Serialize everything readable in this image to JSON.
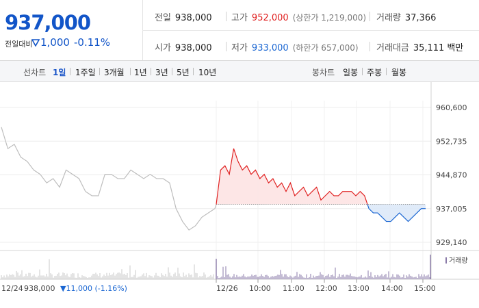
{
  "summary": {
    "price": "937,000",
    "change_label": "전일대비",
    "change_value": "1,000",
    "change_percent": "-0.11%",
    "prev_close_label": "전일",
    "prev_close": "938,000",
    "open_label": "시가",
    "open": "938,000",
    "high_label": "고가",
    "high": "952,000",
    "upper_limit": "(상한가 1,219,000)",
    "low_label": "저가",
    "low": "933,000",
    "lower_limit": "(하한가 657,000)",
    "volume_label": "거래량",
    "volume": "37,366",
    "amount_label": "거래대금",
    "amount": "35,111",
    "amount_unit": "백만"
  },
  "tabs": {
    "line_label": "선차트",
    "line": [
      "1일",
      "1주일",
      "3개월",
      "1년",
      "3년",
      "5년",
      "10년"
    ],
    "candle_label": "봉차트",
    "candle": [
      "일봉",
      "주봉",
      "월봉"
    ],
    "active": "1일"
  },
  "chart_data": {
    "type": "line",
    "y_ticks": [
      "960,600",
      "952,735",
      "944,870",
      "937,005",
      "929,140"
    ],
    "ylim": [
      929140,
      960600
    ],
    "reference_price": 938000,
    "x_ticks": [
      "12/26",
      "10:00",
      "11:00",
      "12:00",
      "13:00",
      "14:00",
      "15:00"
    ],
    "prev_day_label": "12/24",
    "prev_day_close": "938,000",
    "prev_day_change": "▼11,000 (-1.16%)",
    "volume_legend": "거래량",
    "prev_day_series": [
      956000,
      951000,
      952000,
      949000,
      948000,
      946000,
      945000,
      943000,
      944000,
      942000,
      946000,
      945000,
      944000,
      941000,
      940000,
      940000,
      945000,
      945000,
      944000,
      944000,
      946000,
      945000,
      944000,
      945000,
      944000,
      944000,
      943000,
      937000,
      934000,
      932000,
      933000,
      935000,
      936000,
      937000
    ],
    "today_series": [
      938000,
      946000,
      947000,
      945000,
      951000,
      948000,
      946000,
      947000,
      945000,
      946000,
      944000,
      945000,
      943000,
      944000,
      942000,
      943000,
      941000,
      943000,
      940000,
      941000,
      942000,
      940000,
      941000,
      942000,
      939000,
      940000,
      941000,
      940000,
      940000,
      941000,
      941000,
      941000,
      940000,
      941000,
      940000,
      937000,
      936000,
      936000,
      935000,
      934000,
      934000,
      935000,
      936000,
      935000,
      934000,
      935000,
      936000,
      937000,
      937000
    ]
  },
  "colors": {
    "up": "#e02020",
    "down": "#1a66d2",
    "prev_day": "#bdbdbd",
    "up_fill": "#fde3e3",
    "down_fill": "#dde9f8",
    "volume_bar": "#8a7aa8"
  }
}
